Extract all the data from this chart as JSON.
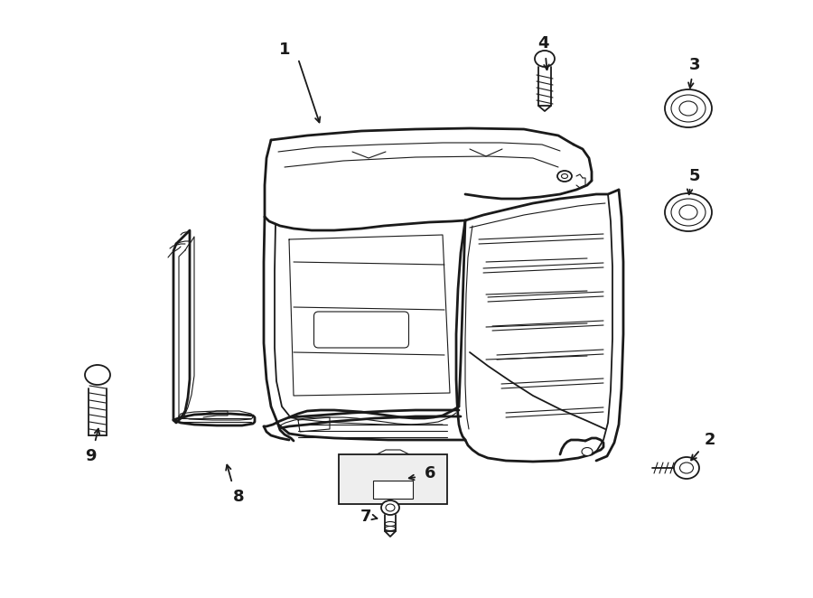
{
  "background_color": "#ffffff",
  "line_color": "#1a1a1a",
  "fig_width": 9.0,
  "fig_height": 6.62,
  "dpi": 100
}
